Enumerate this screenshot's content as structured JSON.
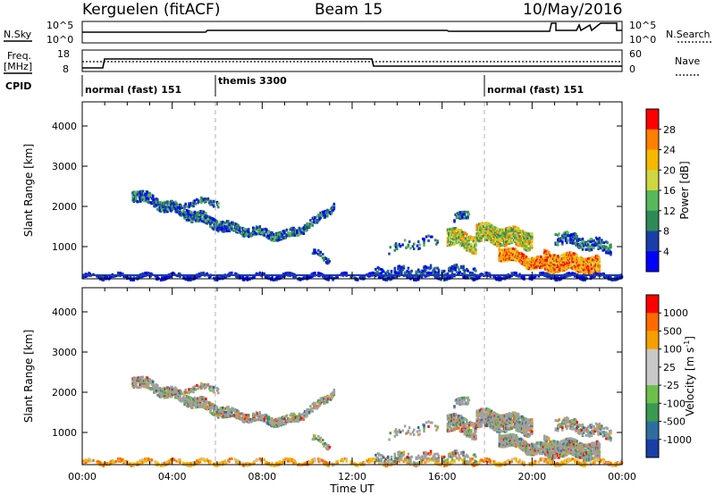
{
  "header": {
    "radar": "Kerguelen (fitACF)",
    "beam": "Beam 15",
    "date": "10/May/2016"
  },
  "top_panels": {
    "nsky_label": "N.Sky",
    "nsky_ticks": [
      "10^5",
      "10^0"
    ],
    "nsearch_label": "N.Search",
    "nsearch_ticks": [
      "10^5",
      "10^0"
    ],
    "freq_label": "Freq.",
    "freq_unit": "[MHz]",
    "freq_ticks": [
      "18",
      "8"
    ],
    "nave_label": "Nave",
    "nave_ticks": [
      "60",
      "0"
    ],
    "cpid_label": "CPID",
    "cpid_segments": [
      {
        "label": "normal (fast) 151",
        "start_hour": 0
      },
      {
        "label": "themis 3300",
        "start_hour": 6
      },
      {
        "label": "normal (fast) 151",
        "start_hour": 18
      }
    ]
  },
  "chart_data": [
    {
      "type": "heatmap",
      "name": "power",
      "ylabel": "Slant Range [km]",
      "xlabel": "",
      "yticks": [
        "1000",
        "2000",
        "3000",
        "4000"
      ],
      "ylim": [
        200,
        4600
      ],
      "xlim_hours": [
        0,
        24
      ],
      "colorbar_label": "Power [dB]",
      "colorbar_ticks": [
        "4",
        "8",
        "12",
        "16",
        "20",
        "24",
        "28"
      ],
      "colorbar_colors": [
        "#0000ff",
        "#1a3ea8",
        "#2e8b57",
        "#5ab85a",
        "#cfd640",
        "#f5b800",
        "#ff7f00",
        "#ff0000"
      ]
    },
    {
      "type": "heatmap",
      "name": "velocity",
      "ylabel": "Slant Range [km]",
      "xlabel": "Time UT",
      "yticks": [
        "1000",
        "2000",
        "3000",
        "4000"
      ],
      "ylim": [
        200,
        4600
      ],
      "xlim_hours": [
        0,
        24
      ],
      "xticks": [
        "00:00",
        "04:00",
        "08:00",
        "12:00",
        "16:00",
        "20:00",
        "00:00"
      ],
      "colorbar_label": "Velocity [m s",
      "colorbar_label_sup": "-1",
      "colorbar_label_end": "]",
      "colorbar_ticks": [
        "1000",
        "500",
        "100",
        "25",
        "-25",
        "-100",
        "-500",
        "-1000"
      ],
      "colorbar_colors": [
        "#1a3ea8",
        "#2e6e9e",
        "#3a9a50",
        "#6cc04a",
        "#c8c8c8",
        "#c8c8c8",
        "#f5a000",
        "#ff6a00",
        "#ff0000"
      ]
    }
  ],
  "colors": {
    "ground_scatter": "#a0a0a0",
    "axis": "#000000",
    "dashed_marker": "#b0b0b0"
  }
}
